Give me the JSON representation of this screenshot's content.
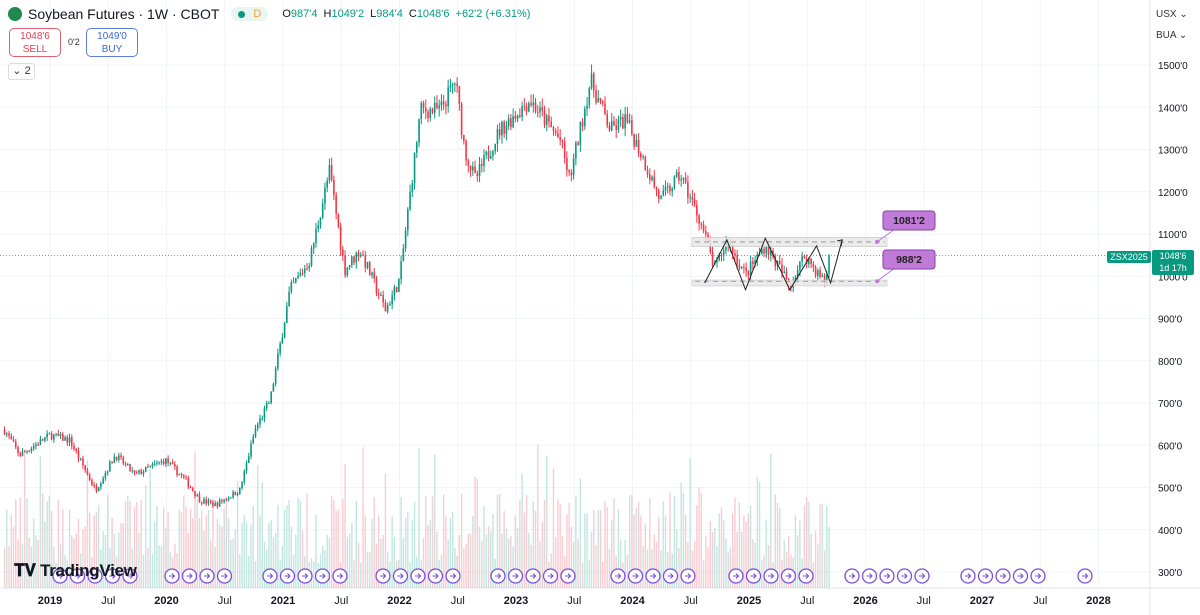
{
  "header": {
    "title": "Soybean Futures · 1W · CBOT",
    "status_letter": "D",
    "open_label": "O",
    "open": "987'4",
    "high_label": "H",
    "high": "1049'2",
    "low_label": "L",
    "low": "984'4",
    "close_label": "C",
    "close": "1048'6",
    "change": "+62'2 (+6.31%)"
  },
  "trade": {
    "sell_price": "1048'6",
    "sell_label": "SELL",
    "spread": "0'2",
    "buy_price": "1049'0",
    "buy_label": "BUY"
  },
  "indicators_collapse": "2",
  "units": {
    "currency": "USX",
    "unit": "BUA"
  },
  "price_tag": {
    "symbol": "ZSX2025",
    "price": "1048'6",
    "countdown": "1d 17h"
  },
  "brand": "TradingView",
  "colors": {
    "up": "#089981",
    "down": "#f23645",
    "annotation": "#c07ad8"
  },
  "chart_data": {
    "type": "candlestick",
    "title": "Soybean Futures · 1W · CBOT",
    "ylim": [
      270,
      1520
    ],
    "y_ticks": [
      {
        "v": 1500,
        "label": "1500'0"
      },
      {
        "v": 1400,
        "label": "1400'0"
      },
      {
        "v": 1300,
        "label": "1300'0"
      },
      {
        "v": 1200,
        "label": "1200'0"
      },
      {
        "v": 1100,
        "label": "1100'0"
      },
      {
        "v": 1000,
        "label": "1000'0"
      },
      {
        "v": 900,
        "label": "900'0"
      },
      {
        "v": 800,
        "label": "800'0"
      },
      {
        "v": 700,
        "label": "700'0"
      },
      {
        "v": 600,
        "label": "600'0"
      },
      {
        "v": 500,
        "label": "500'0"
      },
      {
        "v": 400,
        "label": "400'0"
      },
      {
        "v": 300,
        "label": "300'0"
      }
    ],
    "x_ticks": [
      {
        "t": 2019,
        "label": "2019",
        "bold": true
      },
      {
        "t": 2019.5,
        "label": "Jul"
      },
      {
        "t": 2020,
        "label": "2020",
        "bold": true
      },
      {
        "t": 2020.5,
        "label": "Jul"
      },
      {
        "t": 2021,
        "label": "2021",
        "bold": true
      },
      {
        "t": 2021.5,
        "label": "Jul"
      },
      {
        "t": 2022,
        "label": "2022",
        "bold": true
      },
      {
        "t": 2022.5,
        "label": "Jul"
      },
      {
        "t": 2023,
        "label": "2023",
        "bold": true
      },
      {
        "t": 2023.5,
        "label": "Jul"
      },
      {
        "t": 2024,
        "label": "2024",
        "bold": true
      },
      {
        "t": 2024.5,
        "label": "Jul"
      },
      {
        "t": 2025,
        "label": "2025",
        "bold": true
      },
      {
        "t": 2025.5,
        "label": "Jul"
      },
      {
        "t": 2026,
        "label": "2026",
        "bold": true
      },
      {
        "t": 2026.5,
        "label": "Jul"
      },
      {
        "t": 2027,
        "label": "2027",
        "bold": true
      },
      {
        "t": 2027.5,
        "label": "Jul"
      },
      {
        "t": 2028,
        "label": "2028",
        "bold": true
      }
    ],
    "price_path": [
      [
        2018.61,
        636
      ],
      [
        2018.74,
        577
      ],
      [
        2019.0,
        624
      ],
      [
        2019.17,
        612
      ],
      [
        2019.39,
        494
      ],
      [
        2019.56,
        577
      ],
      [
        2019.73,
        530
      ],
      [
        2019.99,
        565
      ],
      [
        2020.16,
        518
      ],
      [
        2020.29,
        470
      ],
      [
        2020.42,
        459
      ],
      [
        2020.63,
        494
      ],
      [
        2020.76,
        636
      ],
      [
        2020.89,
        707
      ],
      [
        2021.06,
        967
      ],
      [
        2021.23,
        1038
      ],
      [
        2021.4,
        1251
      ],
      [
        2021.53,
        1015
      ],
      [
        2021.66,
        1062
      ],
      [
        2021.88,
        920
      ],
      [
        2022.0,
        991
      ],
      [
        2022.18,
        1393
      ],
      [
        2022.35,
        1393
      ],
      [
        2022.48,
        1464
      ],
      [
        2022.56,
        1299
      ],
      [
        2022.65,
        1228
      ],
      [
        2022.86,
        1346
      ],
      [
        2023.12,
        1417
      ],
      [
        2023.38,
        1322
      ],
      [
        2023.46,
        1228
      ],
      [
        2023.64,
        1464
      ],
      [
        2023.81,
        1346
      ],
      [
        2023.94,
        1370
      ],
      [
        2024.06,
        1299
      ],
      [
        2024.24,
        1180
      ],
      [
        2024.41,
        1240
      ],
      [
        2024.58,
        1133
      ],
      [
        2024.71,
        1015
      ],
      [
        2024.81,
        1086
      ],
      [
        2024.97,
        1003
      ],
      [
        2025.14,
        1074
      ],
      [
        2025.35,
        979
      ],
      [
        2025.48,
        1050
      ],
      [
        2025.65,
        984
      ],
      [
        2025.7,
        1048.75
      ]
    ],
    "last_price": 1048.75,
    "zones": [
      {
        "label": "1081'2",
        "level": 1081.25,
        "low": 1070,
        "high": 1092
      },
      {
        "label": "988'2",
        "level": 988.25,
        "low": 977,
        "high": 991
      }
    ],
    "projection": [
      [
        2024.62,
        984
      ],
      [
        2024.81,
        1086
      ],
      [
        2024.97,
        968
      ],
      [
        2025.14,
        1090
      ],
      [
        2025.35,
        968
      ],
      [
        2025.58,
        1072
      ],
      [
        2025.7,
        984
      ],
      [
        2025.8,
        1086
      ]
    ]
  }
}
